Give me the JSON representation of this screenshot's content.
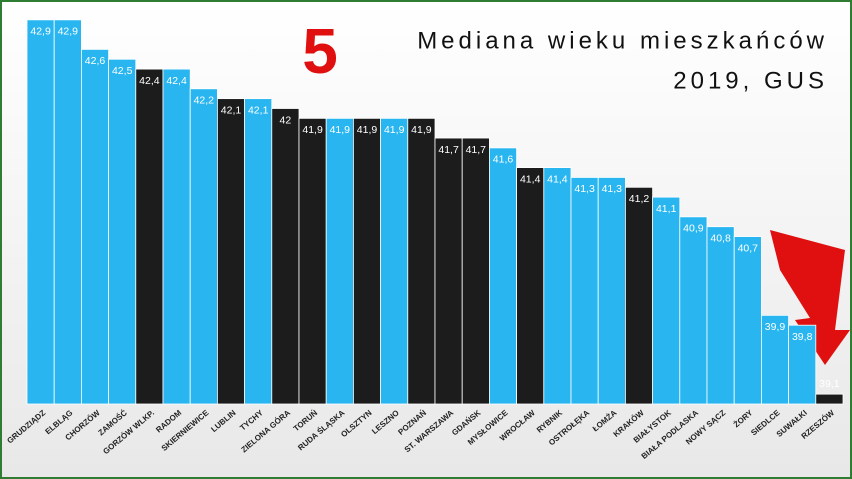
{
  "chart_data": {
    "type": "bar",
    "badge": "5",
    "title": "Mediana wieku mieszkańców",
    "subtitle": "2019, GUS",
    "categories": [
      "GRUDZIĄDZ",
      "ELBLĄG",
      "CHORZÓW",
      "ZAMOŚĆ",
      "GORZÓW WLKP.",
      "RADOM",
      "SKIERNIEWICE",
      "LUBLIN",
      "TYCHY",
      "ZIELONA GÓRA",
      "TORUŃ",
      "RUDA ŚLĄSKA",
      "OLSZTYN",
      "LESZNO",
      "POZNAŃ",
      "ST. WARSZAWA",
      "GDAŃSK",
      "MYSŁOWICE",
      "WROCŁAW",
      "RYBNIK",
      "OSTROŁĘKA",
      "ŁOMŻA",
      "KRAKÓW",
      "BIAŁYSTOK",
      "BIAŁA PODLASKA",
      "NOWY SĄCZ",
      "ŻORY",
      "SIEDLCE",
      "SUWAŁKI",
      "RZESZÓW"
    ],
    "values": [
      42.9,
      42.9,
      42.6,
      42.5,
      42.4,
      42.4,
      42.2,
      42.1,
      42.1,
      42,
      41.9,
      41.9,
      41.9,
      41.9,
      41.9,
      41.7,
      41.7,
      41.6,
      41.4,
      41.4,
      41.3,
      41.3,
      41.2,
      41.1,
      40.9,
      40.8,
      40.7,
      39.9,
      39.8,
      39.1
    ],
    "value_labels": [
      "42,9",
      "42,9",
      "42,6",
      "42,5",
      "42,4",
      "42,4",
      "42,2",
      "42,1",
      "42,1",
      "42",
      "41,9",
      "41,9",
      "41,9",
      "41,9",
      "41,9",
      "41,7",
      "41,7",
      "41,6",
      "41,4",
      "41,4",
      "41,3",
      "41,3",
      "41,2",
      "41,1",
      "40,9",
      "40,8",
      "40,7",
      "39,9",
      "39,8",
      "39,1"
    ],
    "colors": [
      "#29b6f0",
      "#29b6f0",
      "#29b6f0",
      "#29b6f0",
      "#1c1c1c",
      "#29b6f0",
      "#29b6f0",
      "#1c1c1c",
      "#29b6f0",
      "#1c1c1c",
      "#1c1c1c",
      "#29b6f0",
      "#1c1c1c",
      "#29b6f0",
      "#1c1c1c",
      "#1c1c1c",
      "#1c1c1c",
      "#29b6f0",
      "#1c1c1c",
      "#29b6f0",
      "#29b6f0",
      "#29b6f0",
      "#1c1c1c",
      "#29b6f0",
      "#29b6f0",
      "#29b6f0",
      "#29b6f0",
      "#29b6f0",
      "#29b6f0",
      "#1c1c1c"
    ],
    "ylim": [
      39,
      43
    ]
  }
}
